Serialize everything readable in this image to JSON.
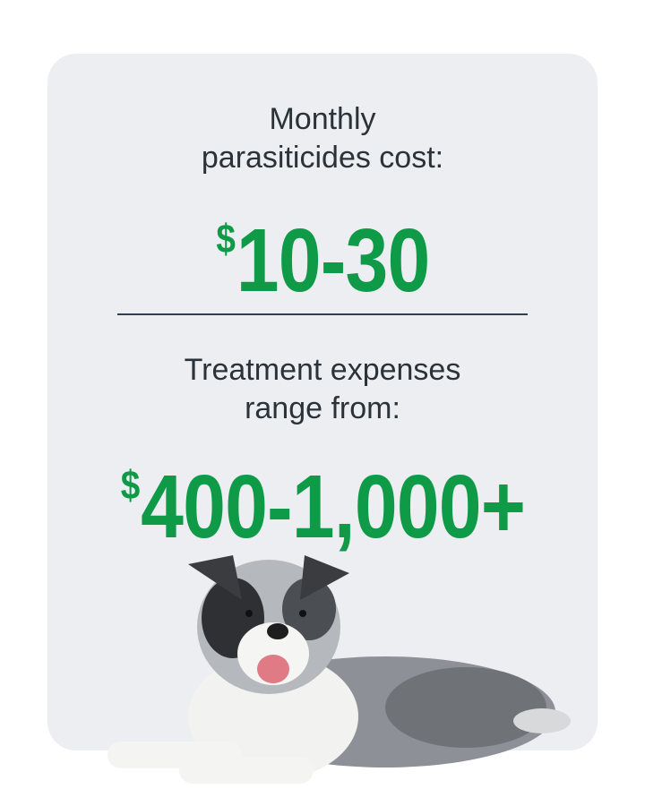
{
  "monthly": {
    "label_line1": "Monthly",
    "label_line2": "parasiticides cost:",
    "currency": "$",
    "amount": "10-30"
  },
  "treatment": {
    "label_line1": "Treatment expenses",
    "label_line2": "range from:",
    "currency": "$",
    "amount": "400-1,000+"
  },
  "colors": {
    "accent": "#0f9a48",
    "text": "#2b3238",
    "card": "#eceef2"
  }
}
